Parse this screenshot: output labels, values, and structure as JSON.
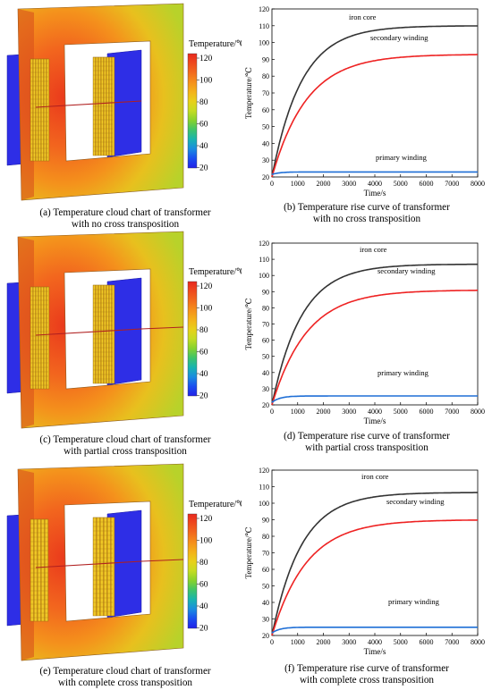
{
  "colorbar": {
    "title": "Temperature/℃",
    "ticks": [
      "120",
      "100",
      "80",
      "60",
      "40",
      "20"
    ],
    "colors": [
      "#e8281e",
      "#ee4a1e",
      "#f26b1e",
      "#f5901c",
      "#f4b21a",
      "#e8d01a",
      "#c4dc22",
      "#86d22e",
      "#3ec46a",
      "#18b4b0",
      "#1a8ce0",
      "#1a4ef0",
      "#2222e8"
    ]
  },
  "captions": {
    "a": [
      "(a) Temperature cloud chart of transformer",
      "with no cross transposition"
    ],
    "b": [
      "(b) Temperature rise curve of transformer",
      "with no cross transposition"
    ],
    "c": [
      "(c) Temperature cloud chart of transformer",
      "with partial cross transposition"
    ],
    "d": [
      "(d) Temperature rise curve of transformer",
      "with partial cross transposition"
    ],
    "e": [
      "(e) Temperature cloud chart of transformer",
      "with complete cross transposition"
    ],
    "f": [
      "(f) Temperature rise curve of transformer",
      "with complete cross transposition"
    ]
  },
  "colors": {
    "iron_core": "#333333",
    "secondary_winding": "#ee2222",
    "primary_winding": "#1f6fd6"
  },
  "chart_data": [
    {
      "panel": "b",
      "type": "line",
      "xlabel": "Time/s",
      "ylabel": "Temperature/℃",
      "xlim": [
        0,
        8000
      ],
      "ylim": [
        20,
        120
      ],
      "xticks": [
        0,
        1000,
        2000,
        3000,
        4000,
        5000,
        6000,
        7000,
        8000
      ],
      "yticks": [
        20,
        30,
        40,
        50,
        60,
        70,
        80,
        90,
        100,
        110,
        120
      ],
      "grid": false,
      "series": [
        {
          "name": "iron core",
          "t0": 20,
          "tf": 110,
          "tau": 1150
        },
        {
          "name": "secondary winding",
          "t0": 20,
          "tf": 93,
          "tau": 1350
        },
        {
          "name": "primary winding",
          "t0": 21.5,
          "tf": 23,
          "tau": 300
        }
      ]
    },
    {
      "panel": "d",
      "type": "line",
      "xlabel": "Time/s",
      "ylabel": "Temperature/℃",
      "xlim": [
        0,
        8000
      ],
      "ylim": [
        20,
        120
      ],
      "xticks": [
        0,
        1000,
        2000,
        3000,
        4000,
        5000,
        6000,
        7000,
        8000
      ],
      "yticks": [
        20,
        30,
        40,
        50,
        60,
        70,
        80,
        90,
        100,
        110,
        120
      ],
      "grid": false,
      "series": [
        {
          "name": "iron core",
          "t0": 20,
          "tf": 107,
          "tau": 1150
        },
        {
          "name": "secondary winding",
          "t0": 20,
          "tf": 91,
          "tau": 1350
        },
        {
          "name": "primary winding",
          "t0": 21.5,
          "tf": 25.5,
          "tau": 300
        }
      ]
    },
    {
      "panel": "f",
      "type": "line",
      "xlabel": "Time/s",
      "ylabel": "Temperature/℃",
      "xlim": [
        0,
        8000
      ],
      "ylim": [
        20,
        120
      ],
      "xticks": [
        0,
        1000,
        2000,
        3000,
        4000,
        5000,
        6000,
        7000,
        8000
      ],
      "yticks": [
        20,
        30,
        40,
        50,
        60,
        70,
        80,
        90,
        100,
        110,
        120
      ],
      "grid": false,
      "series": [
        {
          "name": "iron core",
          "t0": 20,
          "tf": 106.5,
          "tau": 1150
        },
        {
          "name": "secondary winding",
          "t0": 20,
          "tf": 90,
          "tau": 1350
        },
        {
          "name": "primary winding",
          "t0": 21.5,
          "tf": 25,
          "tau": 300
        }
      ]
    }
  ]
}
